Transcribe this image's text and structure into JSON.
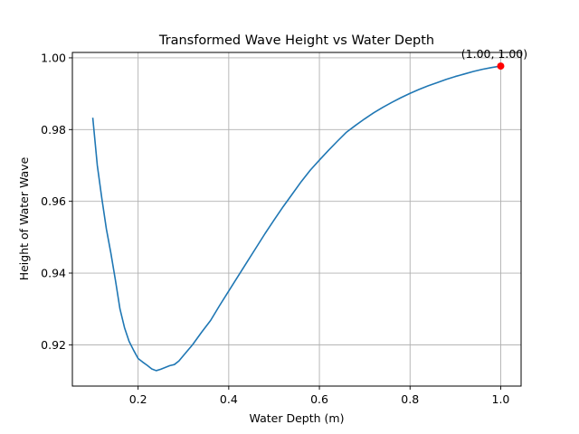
{
  "chart_data": {
    "type": "line",
    "title": "Transformed Wave Height vs Water Depth",
    "xlabel": "Water Depth (m)",
    "ylabel": "Height of Water Wave",
    "xlim": [
      0.055,
      1.045
    ],
    "ylim": [
      0.9085,
      1.0015
    ],
    "xticks": [
      "0.2",
      "0.4",
      "0.6",
      "0.8",
      "1.0"
    ],
    "xtick_values": [
      0.2,
      0.4,
      0.6,
      0.8,
      1.0
    ],
    "yticks": [
      "0.92",
      "0.94",
      "0.96",
      "0.98",
      "1.00"
    ],
    "ytick_values": [
      0.92,
      0.94,
      0.96,
      0.98,
      1.0
    ],
    "grid": true,
    "line_color": "#1f77b4",
    "series": [
      {
        "x": [
          0.1,
          0.11,
          0.12,
          0.13,
          0.14,
          0.15,
          0.16,
          0.17,
          0.18,
          0.19,
          0.2,
          0.21,
          0.22,
          0.23,
          0.24,
          0.25,
          0.26,
          0.27,
          0.28,
          0.29,
          0.3,
          0.32,
          0.34,
          0.36,
          0.38,
          0.4,
          0.42,
          0.44,
          0.46,
          0.48,
          0.5,
          0.52,
          0.54,
          0.56,
          0.58,
          0.6,
          0.62,
          0.64,
          0.66,
          0.68,
          0.7,
          0.72,
          0.74,
          0.76,
          0.78,
          0.8,
          0.82,
          0.84,
          0.86,
          0.88,
          0.9,
          0.92,
          0.94,
          0.96,
          0.98,
          1.0
        ],
        "y": [
          0.9833,
          0.97,
          0.9608,
          0.9523,
          0.9455,
          0.938,
          0.93,
          0.9248,
          0.921,
          0.9185,
          0.9162,
          0.9152,
          0.9143,
          0.9133,
          0.9128,
          0.9132,
          0.9137,
          0.9142,
          0.9145,
          0.9155,
          0.917,
          0.92,
          0.9235,
          0.9268,
          0.931,
          0.935,
          0.939,
          0.943,
          0.947,
          0.951,
          0.9548,
          0.9585,
          0.962,
          0.9655,
          0.9687,
          0.9715,
          0.9742,
          0.9768,
          0.9793,
          0.9812,
          0.983,
          0.9847,
          0.9862,
          0.9876,
          0.9889,
          0.9901,
          0.9912,
          0.9922,
          0.9931,
          0.994,
          0.9948,
          0.9955,
          0.9962,
          0.9968,
          0.9973,
          0.9977
        ]
      }
    ],
    "highlight_point": {
      "x": 1.0,
      "y": 0.9977,
      "color": "#ff0000",
      "label": "(1.00, 1.00)"
    }
  }
}
